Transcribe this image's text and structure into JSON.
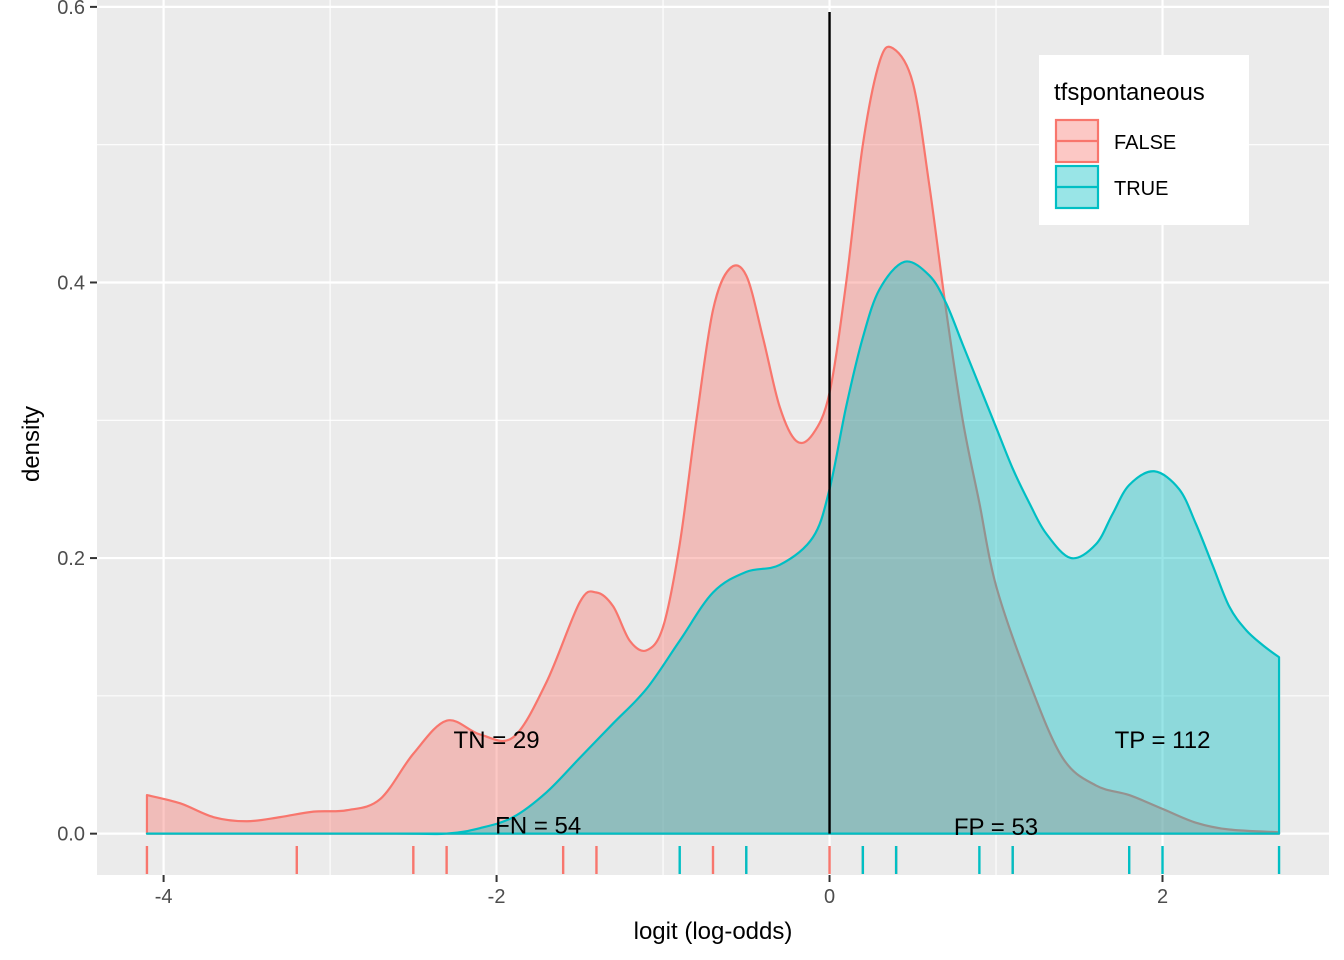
{
  "chart_data": {
    "type": "area",
    "title": "",
    "xlabel": "logit (log-odds)",
    "ylabel": "density",
    "xlim": [
      -4.4,
      3.0
    ],
    "ylim": [
      -0.03,
      0.605
    ],
    "x_ticks": [
      -4,
      -2,
      0,
      2
    ],
    "x_tick_labels": [
      "-4",
      "-2",
      "0",
      "2"
    ],
    "y_ticks": [
      0.0,
      0.2,
      0.4,
      0.6
    ],
    "y_tick_labels": [
      "0.0",
      "0.2",
      "0.4",
      "0.6"
    ],
    "grid": true,
    "threshold_x": 0,
    "legend": {
      "title": "tfspontaneous",
      "position": "top-right",
      "entries": [
        {
          "label": "FALSE",
          "color": "#F8766D"
        },
        {
          "label": "TRUE",
          "color": "#00BFC4"
        }
      ]
    },
    "series": [
      {
        "name": "FALSE",
        "color": "#F8766D",
        "density": [
          [
            -4.1,
            0.028
          ],
          [
            -3.9,
            0.022
          ],
          [
            -3.7,
            0.012
          ],
          [
            -3.5,
            0.009
          ],
          [
            -3.3,
            0.012
          ],
          [
            -3.1,
            0.016
          ],
          [
            -2.9,
            0.017
          ],
          [
            -2.7,
            0.025
          ],
          [
            -2.5,
            0.058
          ],
          [
            -2.3,
            0.082
          ],
          [
            -2.1,
            0.072
          ],
          [
            -1.9,
            0.07
          ],
          [
            -1.7,
            0.11
          ],
          [
            -1.5,
            0.168
          ],
          [
            -1.4,
            0.175
          ],
          [
            -1.3,
            0.165
          ],
          [
            -1.2,
            0.14
          ],
          [
            -1.1,
            0.133
          ],
          [
            -1.0,
            0.15
          ],
          [
            -0.9,
            0.21
          ],
          [
            -0.8,
            0.3
          ],
          [
            -0.7,
            0.38
          ],
          [
            -0.6,
            0.41
          ],
          [
            -0.5,
            0.405
          ],
          [
            -0.4,
            0.36
          ],
          [
            -0.3,
            0.31
          ],
          [
            -0.2,
            0.285
          ],
          [
            -0.1,
            0.29
          ],
          [
            0.0,
            0.32
          ],
          [
            0.1,
            0.4
          ],
          [
            0.2,
            0.5
          ],
          [
            0.3,
            0.56
          ],
          [
            0.38,
            0.57
          ],
          [
            0.5,
            0.545
          ],
          [
            0.6,
            0.47
          ],
          [
            0.7,
            0.38
          ],
          [
            0.8,
            0.3
          ],
          [
            0.9,
            0.24
          ],
          [
            1.0,
            0.18
          ],
          [
            1.2,
            0.11
          ],
          [
            1.4,
            0.055
          ],
          [
            1.6,
            0.035
          ],
          [
            1.8,
            0.028
          ],
          [
            2.0,
            0.018
          ],
          [
            2.2,
            0.008
          ],
          [
            2.4,
            0.003
          ],
          [
            2.7,
            0.001
          ]
        ]
      },
      {
        "name": "TRUE",
        "color": "#00BFC4",
        "density": [
          [
            -4.1,
            0.0
          ],
          [
            -2.6,
            0.0
          ],
          [
            -2.3,
            0.0
          ],
          [
            -2.1,
            0.004
          ],
          [
            -1.9,
            0.012
          ],
          [
            -1.7,
            0.03
          ],
          [
            -1.5,
            0.055
          ],
          [
            -1.3,
            0.08
          ],
          [
            -1.1,
            0.105
          ],
          [
            -0.9,
            0.14
          ],
          [
            -0.7,
            0.175
          ],
          [
            -0.5,
            0.19
          ],
          [
            -0.3,
            0.195
          ],
          [
            -0.1,
            0.215
          ],
          [
            0.0,
            0.25
          ],
          [
            0.1,
            0.31
          ],
          [
            0.2,
            0.36
          ],
          [
            0.3,
            0.395
          ],
          [
            0.45,
            0.415
          ],
          [
            0.6,
            0.405
          ],
          [
            0.7,
            0.385
          ],
          [
            0.8,
            0.355
          ],
          [
            0.9,
            0.325
          ],
          [
            1.0,
            0.295
          ],
          [
            1.1,
            0.265
          ],
          [
            1.2,
            0.24
          ],
          [
            1.3,
            0.218
          ],
          [
            1.45,
            0.2
          ],
          [
            1.6,
            0.21
          ],
          [
            1.7,
            0.232
          ],
          [
            1.8,
            0.253
          ],
          [
            1.95,
            0.263
          ],
          [
            2.1,
            0.25
          ],
          [
            2.2,
            0.225
          ],
          [
            2.3,
            0.195
          ],
          [
            2.4,
            0.165
          ],
          [
            2.5,
            0.148
          ],
          [
            2.6,
            0.137
          ],
          [
            2.7,
            0.128
          ]
        ]
      }
    ],
    "rug": [
      {
        "series": "FALSE",
        "x": [
          -4.1,
          -3.2,
          -2.5,
          -2.3,
          -1.6,
          -1.4,
          -0.7,
          -0.5,
          0.0,
          0.2,
          0.4,
          1.1
        ]
      },
      {
        "series": "TRUE",
        "x": [
          -0.9,
          -0.5,
          0.2,
          0.4,
          0.9,
          1.1,
          1.8,
          2.0,
          2.7
        ]
      }
    ],
    "annotations": [
      {
        "text": "TN = 29",
        "x": -2.0,
        "y": 0.068
      },
      {
        "text": "FN = 54",
        "x": -1.75,
        "y": 0.006
      },
      {
        "text": "FP = 53",
        "x": 1.0,
        "y": 0.005
      },
      {
        "text": "TP = 112",
        "x": 2.0,
        "y": 0.068
      }
    ]
  }
}
